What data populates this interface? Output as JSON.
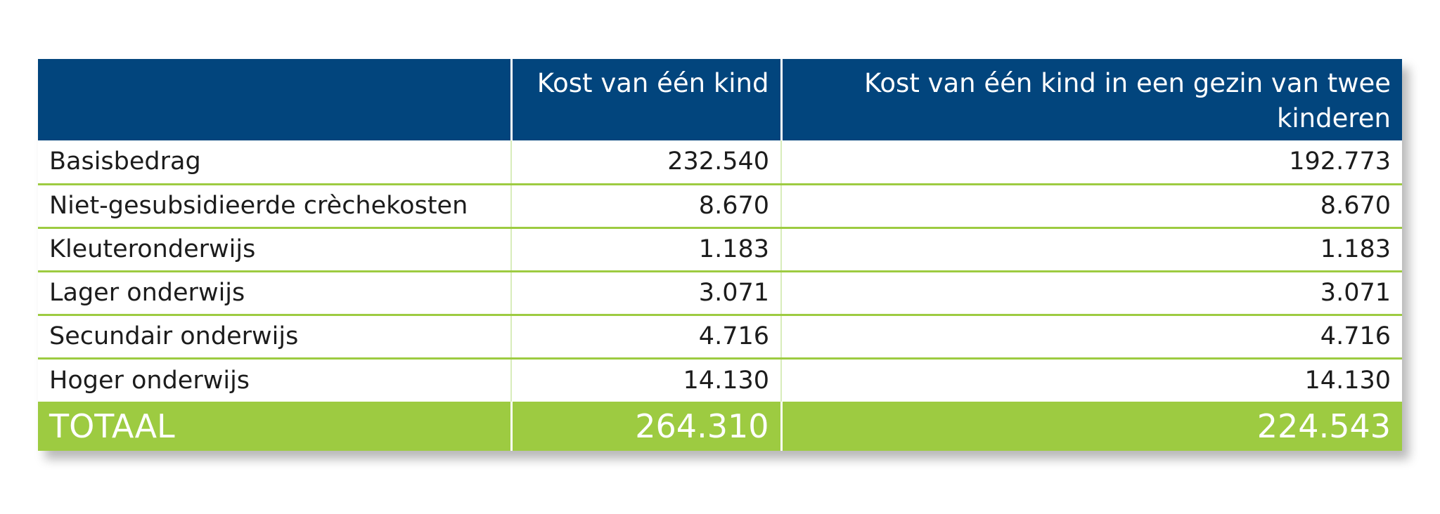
{
  "table": {
    "headers": [
      "",
      "Kost van één kind",
      "Kost van één kind in een gezin van twee kinderen"
    ],
    "rows": [
      {
        "label": "Basisbedrag",
        "one_child": "232.540",
        "two_children": "192.773"
      },
      {
        "label": "Niet-gesubsidieerde crèchekosten",
        "one_child": "8.670",
        "two_children": "8.670"
      },
      {
        "label": "Kleuteronderwijs",
        "one_child": "1.183",
        "two_children": "1.183"
      },
      {
        "label": "Lager onderwijs",
        "one_child": "3.071",
        "two_children": "3.071"
      },
      {
        "label": "Secundair onderwijs",
        "one_child": "4.716",
        "two_children": "4.716"
      },
      {
        "label": "Hoger onderwijs",
        "one_child": "14.130",
        "two_children": "14.130"
      }
    ],
    "total": {
      "label": "TOTAAL",
      "one_child": "264.310",
      "two_children": "224.543"
    }
  },
  "colors": {
    "header_bg": "#02457d",
    "accent_green": "#9dcb41",
    "text": "#1c1c1c"
  }
}
